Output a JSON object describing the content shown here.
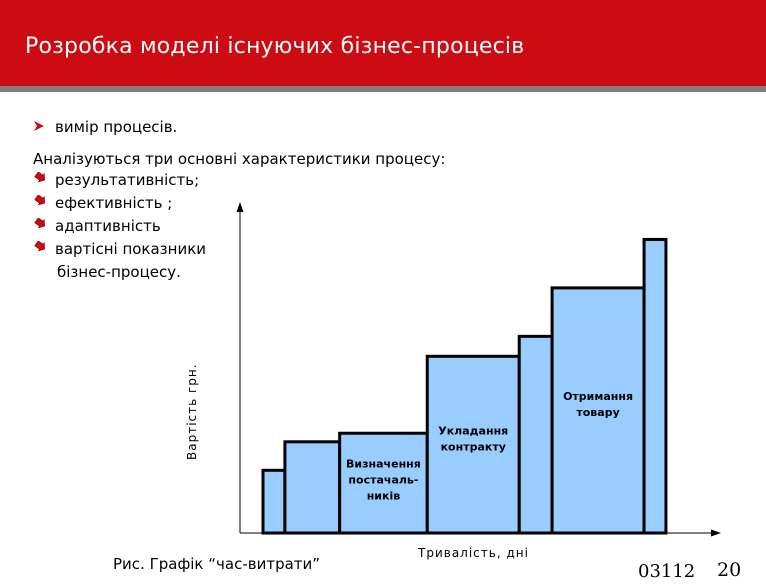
{
  "slide": {
    "title": "Розробка моделі існуючих бізнес-процесів",
    "first_bullet": "вимір процесів.",
    "intro": "Аналізуються три основні характеристики процесу:",
    "bullets": [
      "результативність;",
      "ефективність ;",
      "адаптивність",
      "вартісні показники"
    ],
    "bullet_continuation": "бізнес-процесу.",
    "caption": "Рис. Графік “час-витрати”",
    "code": "03112",
    "page_number": "20",
    "colors": {
      "header": "#cc0b12",
      "bar_fill": "#99ccff",
      "bullet": "#cc0b12"
    }
  },
  "chart_data": {
    "type": "bar",
    "xlabel": "Тривалість, дні",
    "ylabel": "Вартість  грн.",
    "bars": [
      {
        "label": "",
        "duration": 1,
        "cost": 2.2
      },
      {
        "label": "",
        "duration": 2.5,
        "cost": 3.2
      },
      {
        "label": "Визначення постачаль-ників",
        "duration": 4,
        "cost": 3.5
      },
      {
        "label": "Укладання контракту",
        "duration": 4.2,
        "cost": 6.2
      },
      {
        "label": "",
        "duration": 1.5,
        "cost": 6.9
      },
      {
        "label": "Отримання товару",
        "duration": 4.2,
        "cost": 8.6
      },
      {
        "label": "",
        "duration": 1,
        "cost": 10.3
      }
    ]
  }
}
